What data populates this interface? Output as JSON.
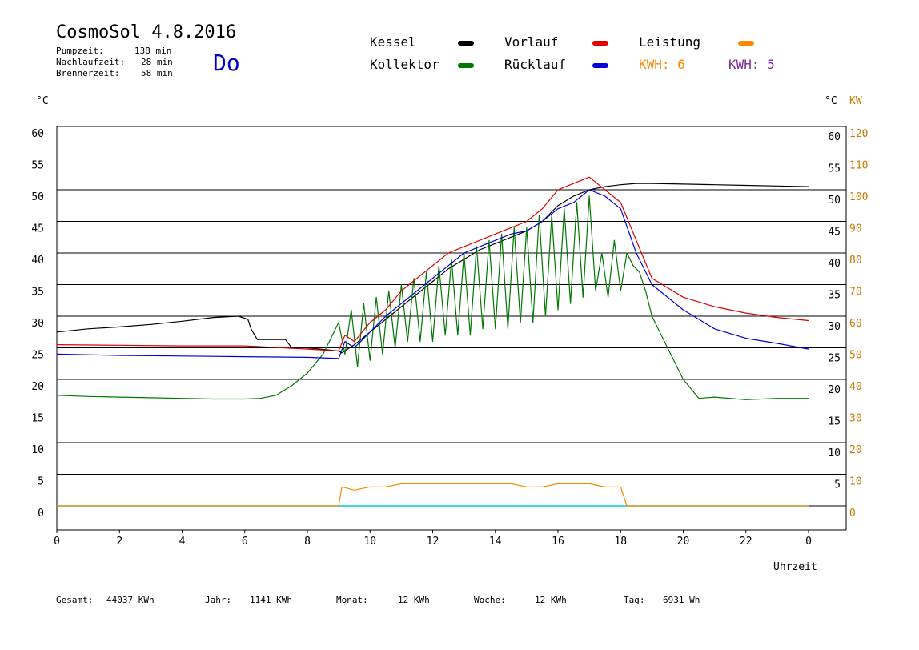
{
  "header": {
    "title": "CosmoSol 4.8.2016",
    "day": "Do",
    "stats": [
      {
        "label": "Pumpzeit:",
        "value": "138 min"
      },
      {
        "label": "Nachlaufzeit:",
        "value": "28 min"
      },
      {
        "label": "Brennerzeit:",
        "value": "58 min"
      }
    ]
  },
  "legend": {
    "kessel": "Kessel",
    "kollektor": "Kollektor",
    "vorlauf": "Vorlauf",
    "ruecklauf": "Rücklauf",
    "leistung": "Leistung",
    "kwh1": "KWH: 6",
    "kwh2": "KWH: 5"
  },
  "colors": {
    "kessel": "#000000",
    "kollektor": "#007700",
    "vorlauf": "#e00000",
    "ruecklauf": "#0000dd",
    "leistung": "#ff8800",
    "kwh2": "#7a2a9a",
    "pump": "#00cccc"
  },
  "axis_units": {
    "left": "°C",
    "right_c": "°C",
    "right_kw": "KW",
    "x": "Uhrzeit"
  },
  "footer": [
    {
      "label": "Gesamt:",
      "value": "44037 KWh"
    },
    {
      "label": "Jahr:",
      "value": "1141 KWh"
    },
    {
      "label": "Monat:",
      "value": "12 KWh"
    },
    {
      "label": "Woche:",
      "value": "12 KWh"
    },
    {
      "label": "Tag:",
      "value": "6931 Wh"
    }
  ],
  "chart_data": {
    "type": "line",
    "title": "CosmoSol 4.8.2016",
    "xlabel": "Uhrzeit",
    "ylabel": "°C",
    "y2label": "KW",
    "xlim": [
      0,
      24
    ],
    "ylim": [
      0,
      60
    ],
    "y2lim": [
      0,
      120
    ],
    "grid": true,
    "x_ticks": [
      "0",
      "2",
      "4",
      "6",
      "8",
      "10",
      "12",
      "14",
      "16",
      "18",
      "20",
      "22",
      "0"
    ],
    "y_ticks": [
      "0",
      "5",
      "10",
      "15",
      "20",
      "25",
      "30",
      "35",
      "40",
      "45",
      "50",
      "55",
      "60"
    ],
    "y2_ticks": [
      "0",
      "10",
      "20",
      "30",
      "40",
      "50",
      "60",
      "70",
      "80",
      "90",
      "100",
      "110",
      "120"
    ],
    "series": [
      {
        "name": "Kessel",
        "key": "kessel",
        "x": [
          0,
          1,
          2,
          3,
          4,
          5,
          5.8,
          6.1,
          6.2,
          6.4,
          7.3,
          7.5,
          8,
          9,
          9.1,
          9.5,
          10,
          10.5,
          11,
          11.5,
          12,
          12.5,
          13,
          13.5,
          14,
          14.5,
          15,
          15.5,
          16,
          16.5,
          17,
          17.5,
          18,
          18.5,
          19,
          20,
          21,
          22,
          23,
          24
        ],
        "y": [
          27.5,
          28,
          28.3,
          28.7,
          29.2,
          29.8,
          30,
          29.5,
          28,
          26.3,
          26.3,
          25,
          25,
          24.5,
          24.2,
          25.5,
          27.5,
          29.5,
          31.5,
          33.5,
          35.5,
          37.5,
          39,
          40.5,
          41.5,
          42.5,
          43.5,
          45,
          47.5,
          49,
          50,
          50.5,
          50.8,
          51,
          51,
          50.9,
          50.8,
          50.7,
          50.6,
          50.5
        ]
      },
      {
        "name": "Kollektor",
        "key": "kollektor",
        "x": [
          0,
          1,
          2,
          3,
          4,
          5,
          6,
          6.5,
          7,
          7.5,
          8,
          8.5,
          9,
          9.2,
          9.4,
          9.6,
          9.8,
          10,
          10.2,
          10.4,
          10.6,
          10.8,
          11,
          11.2,
          11.4,
          11.6,
          11.8,
          12,
          12.2,
          12.4,
          12.6,
          12.8,
          13,
          13.2,
          13.4,
          13.6,
          13.8,
          14,
          14.2,
          14.4,
          14.6,
          14.8,
          15,
          15.2,
          15.4,
          15.6,
          15.8,
          16,
          16.2,
          16.4,
          16.6,
          16.8,
          17,
          17.2,
          17.4,
          17.6,
          17.8,
          18,
          18.2,
          18.4,
          18.6,
          18.8,
          19,
          19.5,
          20,
          20.5,
          21,
          22,
          23,
          24
        ],
        "y": [
          17.5,
          17.3,
          17.2,
          17.1,
          17,
          16.9,
          16.9,
          17,
          17.5,
          19,
          21,
          24,
          29,
          24,
          31,
          22,
          32,
          23,
          33,
          24,
          34,
          25,
          35,
          26,
          36,
          26,
          37,
          26,
          38,
          27,
          39,
          27,
          40,
          27,
          41,
          28,
          42,
          28,
          43,
          28,
          44,
          29,
          44,
          29,
          46,
          30,
          46,
          31,
          47,
          32,
          48,
          33,
          49,
          34,
          40,
          33,
          42,
          34,
          40,
          38,
          37,
          34,
          30,
          25,
          20,
          17,
          17.2,
          16.8,
          17,
          17
        ]
      },
      {
        "name": "Vorlauf",
        "key": "vorlauf",
        "x": [
          0,
          2,
          4,
          6,
          8,
          9,
          9.2,
          9.5,
          10,
          10.5,
          11,
          11.5,
          12,
          12.5,
          13,
          13.5,
          14,
          14.5,
          15,
          15.5,
          16,
          16.5,
          17,
          17.5,
          18,
          18.5,
          19,
          20,
          21,
          22,
          23,
          24
        ],
        "y": [
          25.5,
          25.4,
          25.3,
          25.3,
          24.8,
          24.5,
          27,
          26,
          29,
          31,
          34,
          36,
          38,
          40,
          41,
          42,
          43,
          44,
          45,
          47,
          50,
          51,
          52,
          50,
          48,
          42,
          36,
          33,
          31.5,
          30.5,
          29.8,
          29.3
        ]
      },
      {
        "name": "Rücklauf",
        "key": "ruecklauf",
        "x": [
          0,
          2,
          4,
          6,
          8,
          9,
          9.2,
          9.5,
          10,
          10.5,
          11,
          11.5,
          12,
          12.5,
          13,
          13.5,
          14,
          14.5,
          15,
          15.5,
          16,
          16.5,
          17,
          17.5,
          18,
          18.5,
          19,
          20,
          21,
          22,
          23,
          24
        ],
        "y": [
          24,
          23.8,
          23.7,
          23.6,
          23.5,
          23.3,
          26,
          25,
          27.5,
          30,
          32,
          34,
          36,
          38,
          40,
          41,
          42,
          43,
          43.5,
          45,
          47,
          48,
          50,
          49,
          47,
          40,
          35,
          31,
          28,
          26.5,
          25.7,
          24.8
        ]
      },
      {
        "name": "Leistung",
        "key": "leistung",
        "axis": "y2",
        "x": [
          0,
          9,
          9.1,
          9.5,
          10,
          10.5,
          11,
          11.5,
          12,
          12.5,
          13,
          13.5,
          14,
          14.5,
          15,
          15.5,
          16,
          16.5,
          17,
          17.5,
          18,
          18.2,
          24
        ],
        "y": [
          0,
          0,
          6,
          5,
          6,
          6,
          7,
          7,
          7,
          7,
          7,
          7,
          7,
          7,
          6,
          6,
          7,
          7,
          7,
          6,
          6,
          0,
          0
        ]
      }
    ]
  }
}
